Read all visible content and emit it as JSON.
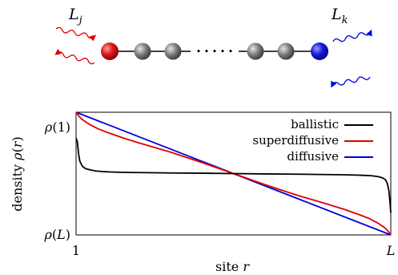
{
  "diagram": {
    "left_operator": "L_j",
    "right_operator": "L_k",
    "left_site_color": "#cc0000",
    "right_site_color": "#0000cc",
    "inner_site_color": "#7a7a7a",
    "left_waves_color": "#e00000",
    "right_waves_color": "#0000e0",
    "chain_break": "• • • • •"
  },
  "chart_data": {
    "type": "line",
    "xlabel": "site r",
    "ylabel": "density ρ(r)",
    "x_ticks": [
      "1",
      "L"
    ],
    "y_ticks": [
      "ρ(1)",
      "ρ(L)"
    ],
    "xlim": [
      0,
      1
    ],
    "ylim": [
      0,
      1
    ],
    "legend_position": "top-right",
    "grid": false,
    "series": [
      {
        "name": "ballistic",
        "color": "#000000",
        "x": [
          0.0,
          0.004,
          0.008,
          0.012,
          0.02,
          0.03,
          0.045,
          0.06,
          0.08,
          0.11,
          0.15,
          0.2,
          0.3,
          0.4,
          0.5,
          0.6,
          0.7,
          0.8,
          0.85,
          0.89,
          0.92,
          0.94,
          0.955,
          0.965,
          0.975,
          0.983,
          0.989,
          0.994,
          0.997,
          1.0
        ],
        "y": [
          0.79,
          0.76,
          0.66,
          0.6,
          0.56,
          0.54,
          0.53,
          0.522,
          0.517,
          0.513,
          0.51,
          0.508,
          0.505,
          0.503,
          0.5,
          0.497,
          0.495,
          0.492,
          0.49,
          0.488,
          0.485,
          0.482,
          0.477,
          0.472,
          0.463,
          0.45,
          0.42,
          0.36,
          0.28,
          0.18
        ]
      },
      {
        "name": "superdiffusive",
        "color": "#e00000",
        "x": [
          0.0,
          0.01,
          0.02,
          0.04,
          0.07,
          0.1,
          0.15,
          0.2,
          0.3,
          0.4,
          0.5,
          0.6,
          0.7,
          0.8,
          0.85,
          0.9,
          0.93,
          0.96,
          0.98,
          0.99,
          1.0
        ],
        "y": [
          1.0,
          0.965,
          0.94,
          0.905,
          0.865,
          0.835,
          0.79,
          0.75,
          0.675,
          0.59,
          0.5,
          0.41,
          0.325,
          0.25,
          0.21,
          0.165,
          0.135,
          0.095,
          0.06,
          0.035,
          0.0
        ]
      },
      {
        "name": "diffusive",
        "color": "#0000e0",
        "x": [
          0.0,
          1.0
        ],
        "y": [
          1.0,
          0.0
        ]
      }
    ]
  }
}
